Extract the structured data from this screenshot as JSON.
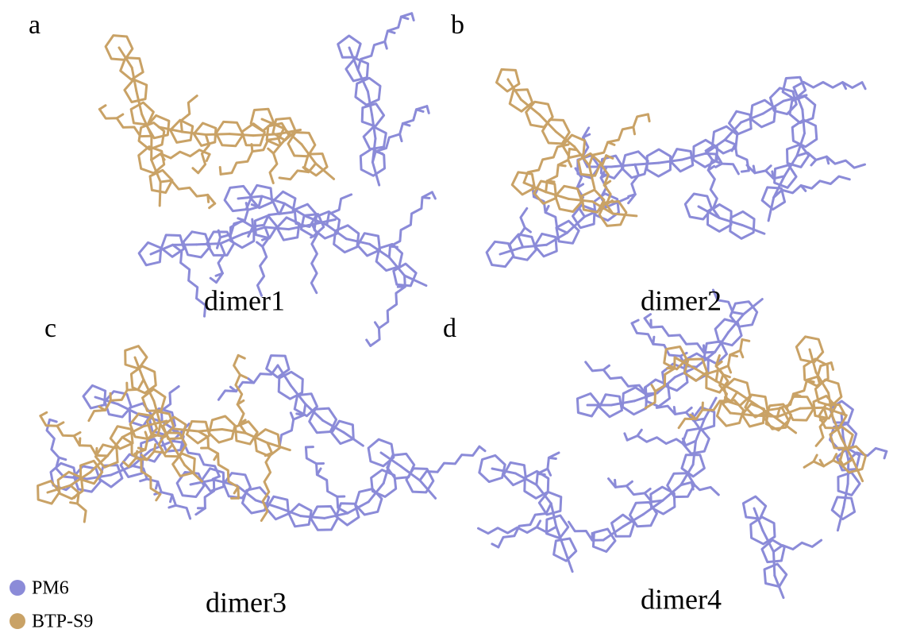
{
  "panels": [
    {
      "label": "a",
      "caption": "dimer1"
    },
    {
      "label": "b",
      "caption": "dimer2"
    },
    {
      "label": "c",
      "caption": "dimer3"
    },
    {
      "label": "d",
      "caption": "dimer4"
    }
  ],
  "legend": [
    {
      "name": "PM6",
      "color": "#8b8bd8"
    },
    {
      "name": "BTP-S9",
      "color": "#c9a266"
    }
  ]
}
